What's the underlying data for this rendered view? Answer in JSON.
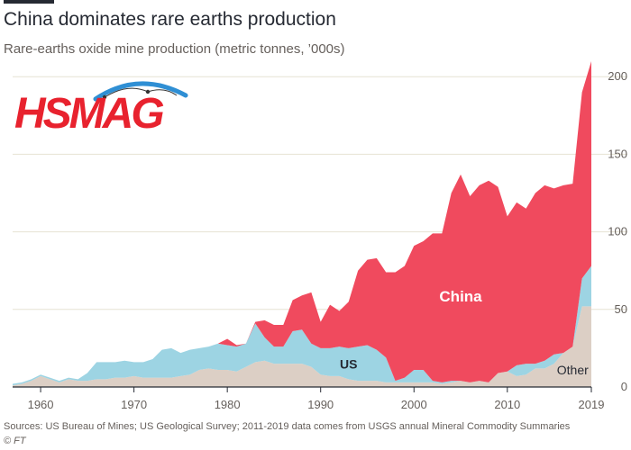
{
  "header": {
    "title": "China dominates rare earths production",
    "subtitle": "Rare-earths oxide mine production (metric tonnes, ’000s)"
  },
  "footer": {
    "source": "Sources: US Bureau of Mines; US Geological Survey; 2011-2019 data comes from USGS annual Mineral Commodity Summaries",
    "credit": "© FT"
  },
  "logo": {
    "text": "HSMAG"
  },
  "colors": {
    "china": "#f04a5e",
    "us": "#9dd4e3",
    "other": "#dccfc5",
    "grid": "#e6e2d3",
    "text": "#262a33",
    "muted": "#66605c"
  },
  "chart_data": {
    "type": "area",
    "stacked": true,
    "x": [
      1957,
      1958,
      1959,
      1960,
      1961,
      1962,
      1963,
      1964,
      1965,
      1966,
      1967,
      1968,
      1969,
      1970,
      1971,
      1972,
      1973,
      1974,
      1975,
      1976,
      1977,
      1978,
      1979,
      1980,
      1981,
      1982,
      1983,
      1984,
      1985,
      1986,
      1987,
      1988,
      1989,
      1990,
      1991,
      1992,
      1993,
      1994,
      1995,
      1996,
      1997,
      1998,
      1999,
      2000,
      2001,
      2002,
      2003,
      2004,
      2005,
      2006,
      2007,
      2008,
      2009,
      2010,
      2011,
      2012,
      2013,
      2014,
      2015,
      2016,
      2017,
      2018,
      2019
    ],
    "series": [
      {
        "name": "Other",
        "values": [
          1,
          2,
          4,
          7,
          5,
          3,
          5,
          4,
          4,
          5,
          5,
          6,
          6,
          7,
          6,
          6,
          6,
          6,
          7,
          8,
          11,
          12,
          11,
          11,
          10,
          13,
          16,
          17,
          15,
          15,
          15,
          15,
          13,
          8,
          7,
          7,
          5,
          4,
          4,
          4,
          3,
          3,
          3,
          3,
          3,
          3,
          2,
          3,
          4,
          3,
          4,
          3,
          9,
          10,
          7,
          8,
          12,
          12,
          15,
          22,
          26,
          52,
          52
        ]
      },
      {
        "name": "US",
        "values": [
          1,
          1,
          1,
          1,
          1,
          1,
          1,
          1,
          5,
          11,
          11,
          10,
          11,
          9,
          10,
          12,
          18,
          19,
          15,
          16,
          14,
          14,
          17,
          16,
          16,
          15,
          25,
          15,
          11,
          11,
          21,
          22,
          15,
          17,
          18,
          19,
          20,
          22,
          23,
          20,
          16,
          1,
          3,
          8,
          8,
          1,
          1,
          1,
          0,
          0,
          0,
          0,
          0,
          0,
          7,
          7,
          3,
          5,
          6,
          0,
          0,
          18,
          26
        ]
      },
      {
        "name": "China",
        "values": [
          0,
          0,
          0,
          0,
          0,
          0,
          0,
          0,
          0,
          0,
          0,
          0,
          0,
          0,
          0,
          0,
          0,
          0,
          0,
          0,
          0,
          0,
          0,
          4,
          1,
          0,
          1,
          11,
          14,
          14,
          20,
          22,
          33,
          17,
          28,
          23,
          30,
          49,
          55,
          59,
          55,
          70,
          72,
          80,
          83,
          95,
          96,
          121,
          133,
          120,
          126,
          130,
          120,
          100,
          105,
          100,
          110,
          113,
          107,
          108,
          105,
          120,
          132
        ]
      }
    ],
    "xticks": [
      1960,
      1970,
      1980,
      1990,
      2000,
      2010,
      2019
    ],
    "yticks": [
      0,
      50,
      100,
      150,
      200
    ],
    "ylim": [
      0,
      210
    ],
    "xlim": [
      1957,
      2019
    ],
    "title": "China dominates rare earths production",
    "subtitle": "Rare-earths oxide mine production (metric tonnes, ’000s)",
    "xlabel": "",
    "ylabel": "",
    "annotations": [
      {
        "text": "China",
        "x": 2005,
        "y": 55
      },
      {
        "text": "US",
        "x": 1993,
        "y": 12
      },
      {
        "text": "Other",
        "x": 2017,
        "y": 8
      }
    ],
    "grid": true,
    "legend": "none"
  }
}
